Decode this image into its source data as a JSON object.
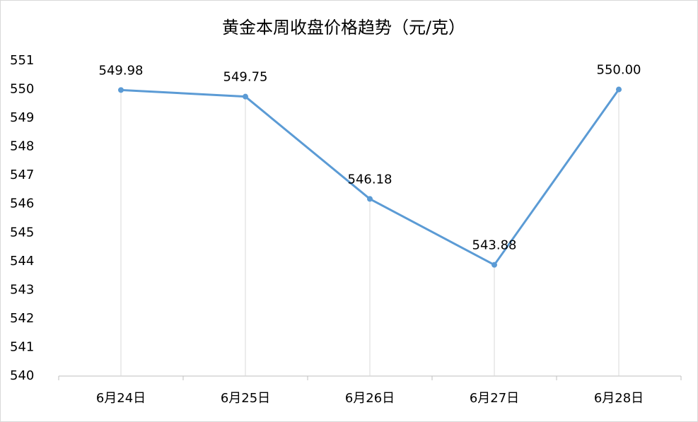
{
  "chart_data": {
    "type": "line",
    "title": "黄金本周收盘价格趋势（元/克）",
    "categories": [
      "6月24日",
      "6月25日",
      "6月26日",
      "6月27日",
      "6月28日"
    ],
    "values": [
      549.98,
      549.75,
      546.18,
      543.88,
      550.0
    ],
    "value_labels": [
      "549.98",
      "549.75",
      "546.18",
      "543.88",
      "550.00"
    ],
    "color": "#5b9bd5",
    "ylim": [
      540,
      551
    ],
    "yticks": [
      540,
      541,
      542,
      543,
      544,
      545,
      546,
      547,
      548,
      549,
      550,
      551
    ],
    "grid": false,
    "drop_lines": true
  }
}
